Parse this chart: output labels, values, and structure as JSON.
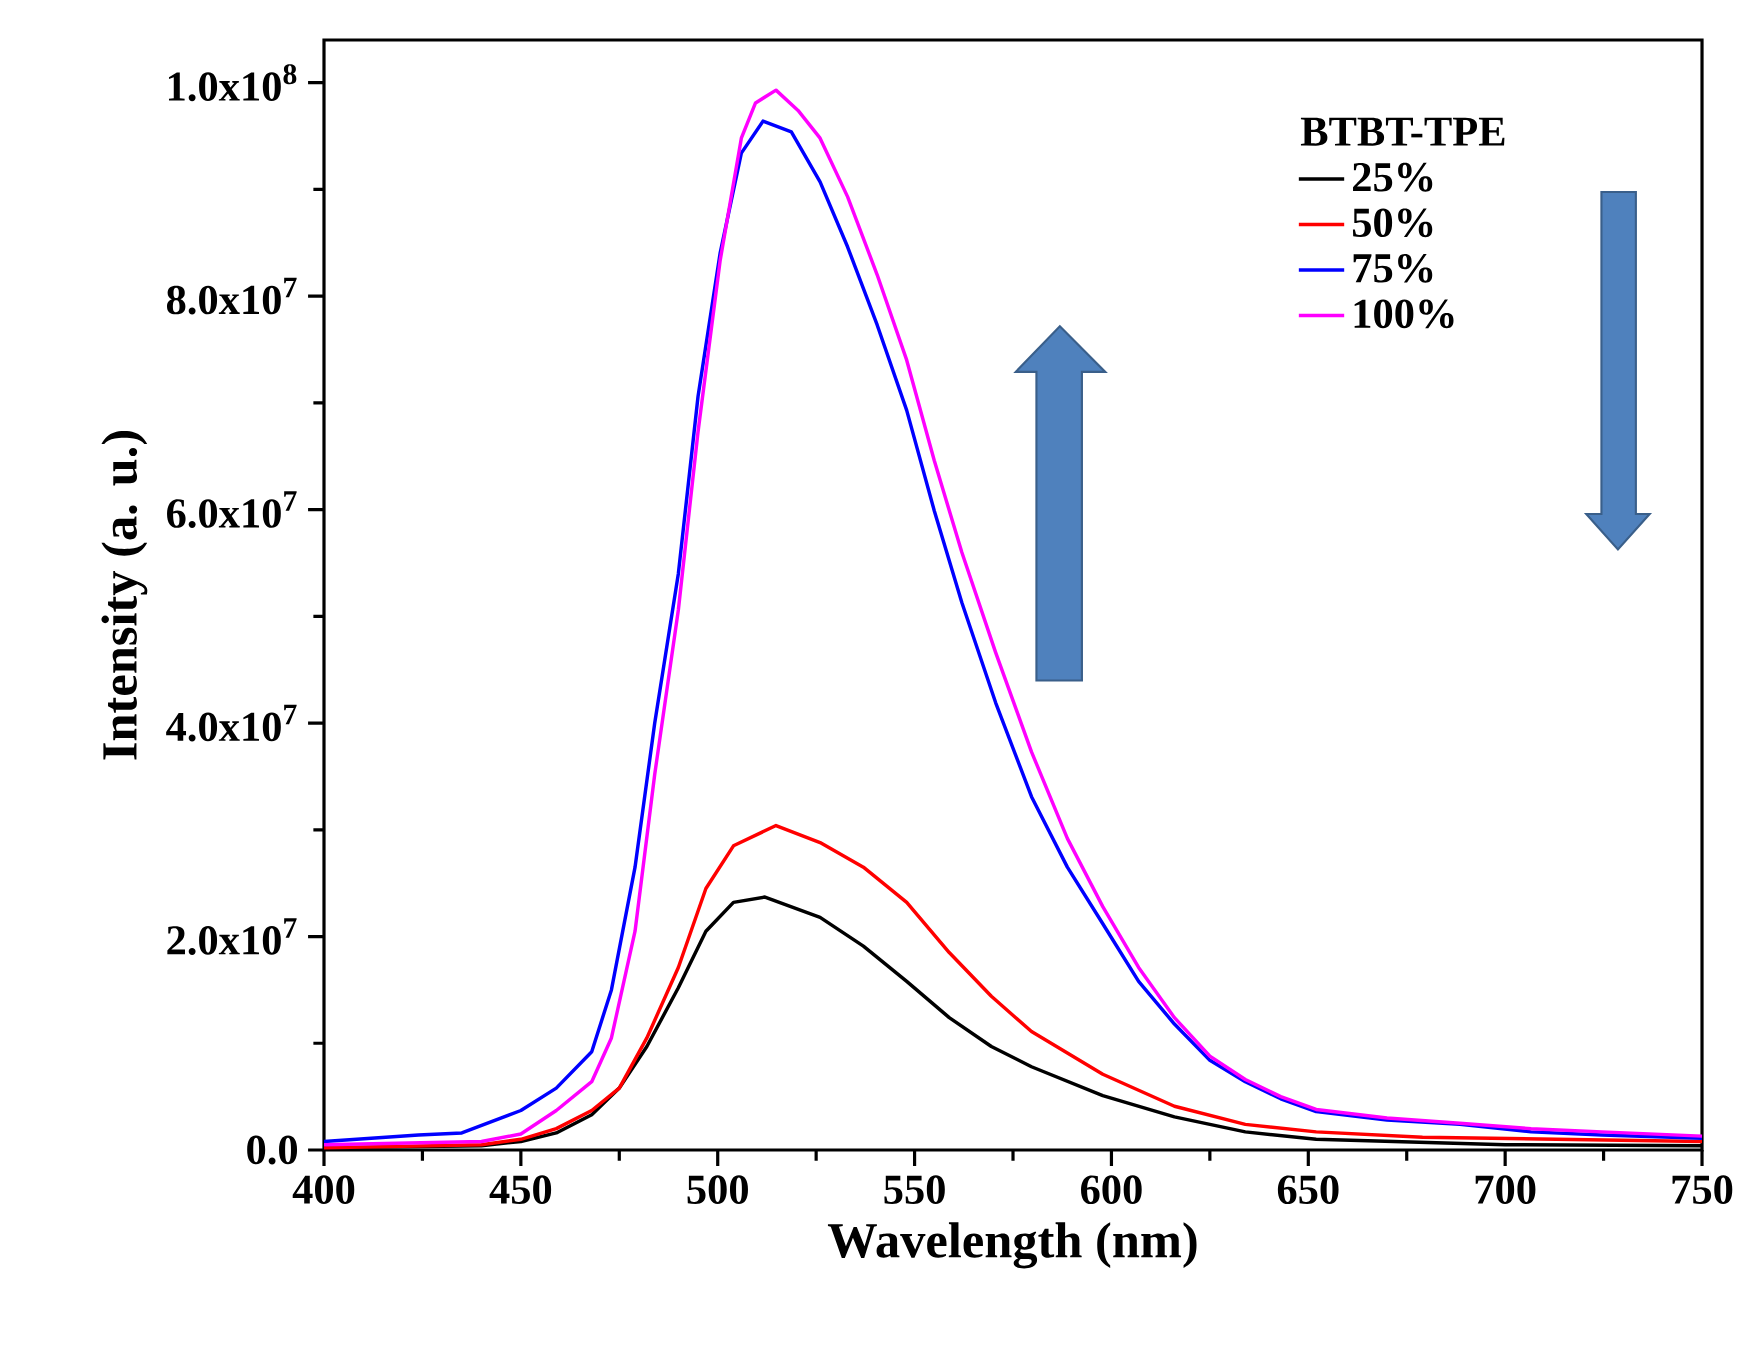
{
  "chart_data": {
    "type": "line",
    "xlabel": "Wavelength (nm)",
    "ylabel": "Intensity (a. u.)",
    "legend_title": "BTBT-TPE",
    "legend": "top right",
    "xlim": [
      400,
      750
    ],
    "ylim": [
      0,
      104000000.0
    ],
    "xticks": [
      400,
      450,
      500,
      550,
      600,
      650,
      700,
      750
    ],
    "yticks": [
      {
        "value": 0,
        "label": "0.0"
      },
      {
        "value": 20000000.0,
        "label": "2.0x10$^{7}$"
      },
      {
        "value": 40000000.0,
        "label": "4.0x10$^{7}$"
      },
      {
        "value": 60000000.0,
        "label": "6.0x10$^{7}$"
      },
      {
        "value": 80000000.0,
        "label": "8.0x10$^{7}$"
      },
      {
        "value": 100000000.0,
        "label": "1.0x10$^{8}$"
      }
    ],
    "series": [
      {
        "name": "25%",
        "color": "#000000",
        "x": [
          400,
          440,
          450,
          459,
          468,
          475,
          482,
          490,
          497,
          504,
          512,
          526,
          537,
          548,
          558.8,
          569.5,
          579.7,
          597.8,
          616,
          634,
          652,
          700,
          750
        ],
        "values": [
          200000.0,
          400000.0,
          800000.0,
          1600000.0,
          3300000.0,
          5800000.0,
          9700000.0,
          15200000.0,
          20500000.0,
          23200000.0,
          23700000.0,
          21800000.0,
          19100000.0,
          15800000.0,
          12400000.0,
          9700000.0,
          7800000.0,
          5100000.0,
          3100000.0,
          1700000.0,
          1000000.0,
          500000.0,
          400000.0
        ]
      },
      {
        "name": "50%",
        "color": "#ff0000",
        "x": [
          400,
          440,
          450,
          459,
          468,
          475,
          482,
          490,
          497,
          504,
          514.8,
          526,
          537,
          548,
          558.8,
          569.5,
          579.7,
          597.8,
          616,
          634,
          652,
          679,
          750
        ],
        "values": [
          200000.0,
          500000.0,
          1000000.0,
          2000000.0,
          3700000.0,
          5800000.0,
          10500000.0,
          17100000.0,
          24500000.0,
          28500000.0,
          30400000.0,
          28800000.0,
          26500000.0,
          23200000.0,
          18500000.0,
          14400000.0,
          11100000.0,
          7100000.0,
          4100000.0,
          2400000.0,
          1700000.0,
          1200000.0,
          800000.0
        ]
      },
      {
        "name": "75%",
        "color": "#0000ff",
        "x": [
          400,
          424,
          435,
          450,
          459,
          468,
          473,
          479,
          484,
          490,
          495,
          500.6,
          506,
          511.5,
          518.7,
          526,
          533,
          540.5,
          548,
          555,
          562,
          570.6,
          579.7,
          588.8,
          597.8,
          606.9,
          616,
          625,
          634,
          643,
          652,
          670,
          688.5,
          706.6,
          724.6,
          750
        ],
        "values": [
          800000.0,
          1400000.0,
          1600000.0,
          3700000.0,
          5800000.0,
          9200000.0,
          15000000.0,
          26500000.0,
          40000000.0,
          54000000.0,
          70600000.0,
          84000000.0,
          93400000.0,
          96400000.0,
          95400000.0,
          90700000.0,
          84600000.0,
          77300000.0,
          69300000.0,
          59900000.0,
          51300000.0,
          41900000.0,
          33100000.0,
          26500000.0,
          21200000.0,
          15800000.0,
          11800000.0,
          8400000.0,
          6400000.0,
          4800000.0,
          3600000.0,
          2800000.0,
          2400000.0,
          1700000.0,
          1400000.0,
          1100000.0
        ]
      },
      {
        "name": "100%",
        "color": "#ff00ff",
        "x": [
          400,
          440,
          450,
          459,
          468,
          473,
          479,
          484,
          490,
          495,
          500.6,
          506,
          509.6,
          514.8,
          520.4,
          526,
          533,
          540.5,
          548,
          555,
          562,
          570.6,
          579.7,
          588.8,
          597.8,
          606.9,
          616,
          625,
          634,
          643,
          652,
          670,
          688.5,
          706.6,
          724.6,
          750
        ],
        "values": [
          500000.0,
          800000.0,
          1500000.0,
          3700000.0,
          6400000.0,
          10500000.0,
          20500000.0,
          35200000.0,
          50600000.0,
          67300000.0,
          83300000.0,
          94800000.0,
          98100000.0,
          99300000.0,
          97400000.0,
          94800000.0,
          89300000.0,
          82000000.0,
          74000000.0,
          64600000.0,
          56000000.0,
          46600000.0,
          37300000.0,
          29200000.0,
          22800000.0,
          17100000.0,
          12400000.0,
          8800000.0,
          6600000.0,
          5000000.0,
          3800000.0,
          3000000.0,
          2500000.0,
          2000000.0,
          1700000.0,
          1300000.0
        ]
      }
    ]
  }
}
